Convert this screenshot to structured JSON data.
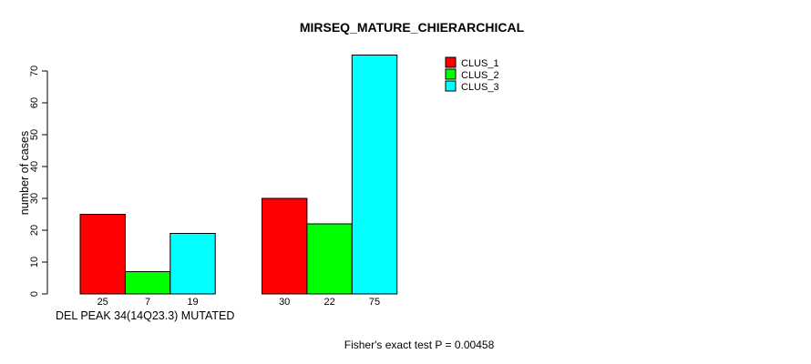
{
  "chart_data": {
    "type": "bar",
    "title": "MIRSEQ_MATURE_CHIERARCHICAL",
    "xlabel": "DEL PEAK 34(14Q23.3) MUTATED",
    "ylabel": "number of cases",
    "ylim": [
      0,
      70
    ],
    "yticks": [
      0,
      10,
      20,
      30,
      40,
      50,
      60,
      70
    ],
    "grid": false,
    "legend_position": "top-right",
    "group_count": 2,
    "series": [
      {
        "name": "CLUS_1",
        "color": "#ff0000",
        "values": [
          25,
          30
        ]
      },
      {
        "name": "CLUS_2",
        "color": "#00ff00",
        "values": [
          7,
          22
        ]
      },
      {
        "name": "CLUS_3",
        "color": "#00ffff",
        "values": [
          19,
          75
        ]
      }
    ],
    "bar_value_labels": [
      [
        "25",
        "7",
        "19"
      ],
      [
        "30",
        "22",
        "75"
      ]
    ]
  },
  "footer": {
    "stat_text": "Fisher's exact test P = 0.00458"
  },
  "colors": {
    "background": "#ffffff",
    "axis": "#000000",
    "bar_border": "#000000"
  }
}
